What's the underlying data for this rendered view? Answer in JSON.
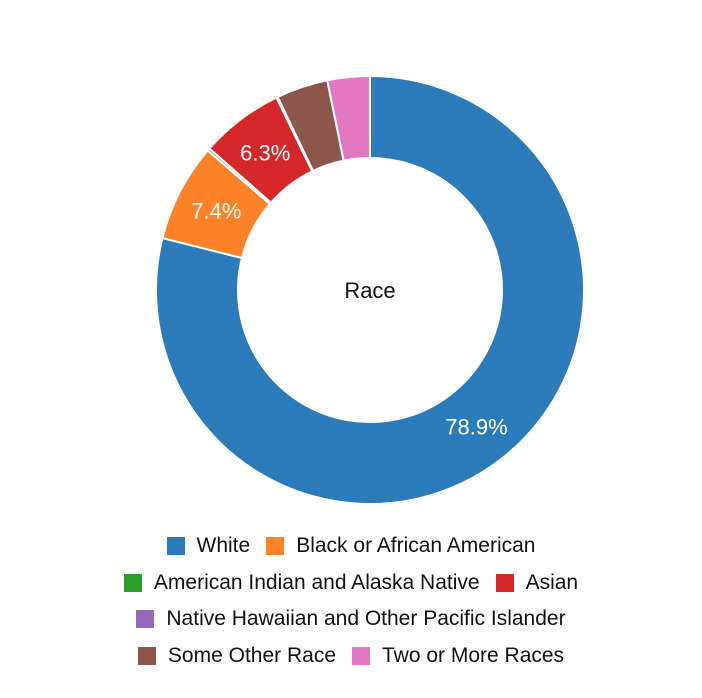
{
  "chart_data": {
    "type": "pie",
    "style": "donut",
    "title": "Race",
    "legend_position": "bottom",
    "categories": [
      "White",
      "Black or African American",
      "American Indian and Alaska Native",
      "Asian",
      "Native Hawaiian and Other Pacific Islander",
      "Some Other Race",
      "Two or More Races"
    ],
    "values": [
      78.9,
      7.4,
      0.2,
      6.3,
      0.1,
      3.9,
      3.2
    ],
    "data_labels": [
      "78.9%",
      "7.4%",
      "",
      "6.3%",
      "",
      "",
      ""
    ],
    "colors": [
      "#2b7bba",
      "#fd8227",
      "#2ca02c",
      "#d62728",
      "#9467bd",
      "#8c564b",
      "#e377c2"
    ],
    "legend_rows": [
      [
        0,
        1
      ],
      [
        2,
        3
      ],
      [
        4
      ],
      [
        5,
        6
      ]
    ]
  }
}
